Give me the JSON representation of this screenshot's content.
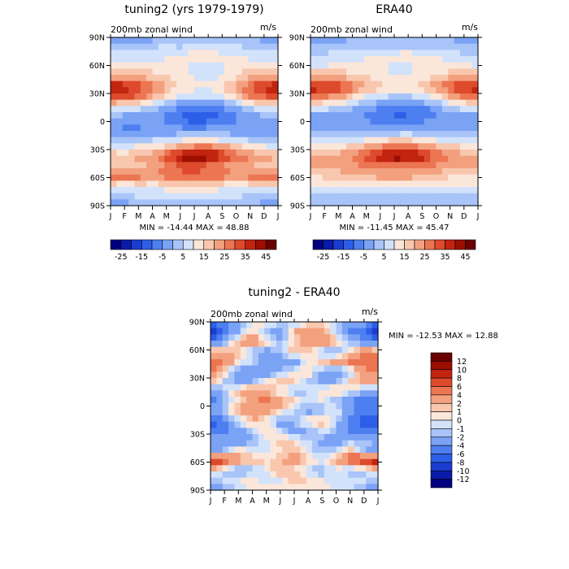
{
  "chart_data": [
    {
      "type": "heatmap",
      "title": "tuning2 (yrs 1979-1979)",
      "subtitle": "200mb zonal wind",
      "units": "m/s",
      "stats": "MIN = -14.44  MAX =  48.88",
      "x_tick_labels": [
        "J",
        "F",
        "M",
        "A",
        "M",
        "J",
        "J",
        "A",
        "S",
        "O",
        "N",
        "D",
        "J"
      ],
      "y_tick_labels": [
        "90N",
        "60N",
        "30N",
        "0",
        "30S",
        "60S",
        "90S"
      ],
      "ylim": [
        -90,
        90
      ],
      "colorbar": {
        "orientation": "horizontal",
        "levels": [
          -25,
          -20,
          -15,
          -10,
          -5,
          0,
          5,
          10,
          15,
          20,
          25,
          30,
          35,
          40,
          45
        ],
        "labels": [
          "-25",
          "-15",
          "-5",
          "5",
          "15",
          "25",
          "35",
          "45"
        ],
        "colors": [
          "#00007f",
          "#0a1aa8",
          "#1a3cd0",
          "#2d5ee8",
          "#4d7ff0",
          "#7aa2f5",
          "#a8c4f8",
          "#d2e2fb",
          "#fbe6da",
          "#f8c7ae",
          "#f3a07f",
          "#ec7552",
          "#dd4a2c",
          "#c22410",
          "#9b0e00",
          "#6b0000"
        ]
      },
      "field": {
        "lat": [
          85,
          75,
          65,
          55,
          45,
          35,
          25,
          15,
          5,
          -5,
          -15,
          -25,
          -35,
          -45,
          -55,
          -65,
          -75,
          -85
        ],
        "rows": [
          [
            -2,
            -4,
            -3,
            -2,
            -1,
            0,
            0,
            0,
            0,
            -1,
            -2,
            -2,
            -2
          ],
          [
            4,
            2,
            3,
            5,
            6,
            5,
            6,
            8,
            7,
            6,
            5,
            4,
            4
          ],
          [
            8,
            8,
            9,
            8,
            10,
            12,
            14,
            14,
            12,
            10,
            9,
            8,
            8
          ],
          [
            12,
            12,
            14,
            13,
            12,
            10,
            9,
            9,
            9,
            12,
            14,
            14,
            12
          ],
          [
            22,
            22,
            20,
            18,
            15,
            12,
            10,
            8,
            10,
            14,
            20,
            22,
            22
          ],
          [
            42,
            40,
            35,
            28,
            20,
            15,
            12,
            12,
            15,
            22,
            30,
            38,
            42
          ],
          [
            34,
            32,
            28,
            20,
            12,
            8,
            5,
            5,
            8,
            15,
            25,
            30,
            34
          ],
          [
            12,
            10,
            8,
            4,
            -2,
            -6,
            -8,
            -8,
            -5,
            0,
            6,
            10,
            12
          ],
          [
            0,
            -2,
            -3,
            -4,
            -6,
            -10,
            -14,
            -14,
            -10,
            -6,
            -3,
            -1,
            0
          ],
          [
            -4,
            -6,
            -6,
            -4,
            -4,
            -6,
            -8,
            -6,
            -4,
            -4,
            -4,
            -4,
            -4
          ],
          [
            0,
            -2,
            0,
            0,
            0,
            2,
            4,
            4,
            2,
            0,
            0,
            0,
            0
          ],
          [
            8,
            8,
            10,
            12,
            16,
            22,
            25,
            25,
            22,
            16,
            12,
            10,
            8
          ],
          [
            20,
            18,
            22,
            25,
            32,
            42,
            48,
            45,
            38,
            30,
            25,
            22,
            20
          ],
          [
            18,
            16,
            18,
            20,
            24,
            30,
            30,
            28,
            24,
            22,
            20,
            18,
            18
          ],
          [
            30,
            28,
            28,
            26,
            28,
            30,
            32,
            30,
            28,
            24,
            28,
            30,
            30
          ],
          [
            12,
            10,
            12,
            12,
            12,
            14,
            14,
            14,
            12,
            12,
            12,
            12,
            12
          ],
          [
            4,
            4,
            6,
            6,
            8,
            8,
            8,
            6,
            6,
            6,
            4,
            4,
            4
          ],
          [
            -2,
            -2,
            -1,
            0,
            0,
            0,
            0,
            0,
            0,
            -1,
            -1,
            -2,
            -2
          ]
        ]
      }
    },
    {
      "type": "heatmap",
      "title": "ERA40",
      "subtitle": "200mb zonal wind",
      "units": "m/s",
      "stats": "MIN = -11.45 MAX =  45.47",
      "x_tick_labels": [
        "J",
        "F",
        "M",
        "A",
        "M",
        "J",
        "J",
        "A",
        "S",
        "O",
        "N",
        "D",
        "J"
      ],
      "y_tick_labels": [
        "90N",
        "60N",
        "30N",
        "0",
        "30S",
        "60S",
        "90S"
      ],
      "ylim": [
        -90,
        90
      ],
      "colorbar": {
        "orientation": "horizontal",
        "levels": [
          -25,
          -20,
          -15,
          -10,
          -5,
          0,
          5,
          10,
          15,
          20,
          25,
          30,
          35,
          40,
          45
        ],
        "labels": [
          "-25",
          "-15",
          "-5",
          "5",
          "15",
          "25",
          "35",
          "45"
        ],
        "colors": [
          "#00007f",
          "#0a1aa8",
          "#1a3cd0",
          "#2d5ee8",
          "#4d7ff0",
          "#7aa2f5",
          "#a8c4f8",
          "#d2e2fb",
          "#fbe6da",
          "#f8c7ae",
          "#f3a07f",
          "#ec7552",
          "#dd4a2c",
          "#c22410",
          "#9b0e00",
          "#6b0000"
        ]
      },
      "field": {
        "lat": [
          85,
          75,
          65,
          55,
          45,
          35,
          25,
          15,
          5,
          -5,
          -15,
          -25,
          -35,
          -45,
          -55,
          -65,
          -75,
          -85
        ],
        "rows": [
          [
            -2,
            -3,
            -2,
            -1,
            0,
            0,
            0,
            0,
            0,
            0,
            -1,
            -2,
            -2
          ],
          [
            2,
            2,
            3,
            4,
            5,
            4,
            4,
            5,
            5,
            4,
            3,
            2,
            2
          ],
          [
            6,
            6,
            8,
            8,
            10,
            12,
            14,
            14,
            12,
            10,
            8,
            6,
            6
          ],
          [
            10,
            10,
            12,
            12,
            12,
            10,
            9,
            9,
            10,
            12,
            12,
            12,
            10
          ],
          [
            22,
            22,
            20,
            18,
            15,
            12,
            10,
            10,
            12,
            15,
            20,
            22,
            22
          ],
          [
            40,
            38,
            34,
            28,
            22,
            16,
            14,
            14,
            18,
            24,
            32,
            38,
            40
          ],
          [
            28,
            26,
            22,
            16,
            10,
            6,
            4,
            4,
            6,
            12,
            20,
            26,
            28
          ],
          [
            10,
            8,
            6,
            2,
            -2,
            -5,
            -8,
            -8,
            -6,
            -2,
            4,
            8,
            10
          ],
          [
            -2,
            -3,
            -3,
            -4,
            -6,
            -8,
            -11,
            -10,
            -8,
            -5,
            -3,
            -2,
            -2
          ],
          [
            -3,
            -4,
            -4,
            -3,
            -3,
            -4,
            -5,
            -4,
            -3,
            -3,
            -3,
            -3,
            -3
          ],
          [
            2,
            2,
            2,
            3,
            4,
            6,
            8,
            8,
            6,
            4,
            3,
            2,
            2
          ],
          [
            12,
            12,
            14,
            16,
            20,
            25,
            28,
            28,
            24,
            20,
            16,
            14,
            12
          ],
          [
            20,
            20,
            22,
            26,
            32,
            40,
            45,
            44,
            38,
            30,
            26,
            22,
            20
          ],
          [
            22,
            22,
            22,
            24,
            26,
            28,
            28,
            28,
            26,
            24,
            22,
            22,
            22
          ],
          [
            16,
            16,
            18,
            18,
            20,
            22,
            22,
            22,
            20,
            18,
            16,
            16,
            16
          ],
          [
            10,
            10,
            10,
            12,
            12,
            12,
            12,
            12,
            12,
            12,
            10,
            10,
            10
          ],
          [
            4,
            4,
            4,
            5,
            5,
            5,
            5,
            5,
            5,
            5,
            4,
            4,
            4
          ],
          [
            0,
            0,
            0,
            1,
            1,
            1,
            1,
            1,
            1,
            1,
            0,
            0,
            0
          ]
        ]
      }
    },
    {
      "type": "heatmap",
      "title": "tuning2 - ERA40",
      "subtitle": "200mb zonal wind",
      "units": "m/s",
      "stats": "MIN = -12.53 MAX =  12.88",
      "x_tick_labels": [
        "J",
        "F",
        "M",
        "A",
        "M",
        "J",
        "J",
        "A",
        "S",
        "O",
        "N",
        "D",
        "J"
      ],
      "y_tick_labels": [
        "90N",
        "60N",
        "30N",
        "0",
        "30S",
        "60S",
        "90S"
      ],
      "ylim": [
        -90,
        90
      ],
      "colorbar": {
        "orientation": "vertical",
        "levels": [
          -12,
          -10,
          -8,
          -6,
          -4,
          -2,
          -1,
          0,
          1,
          2,
          4,
          6,
          8,
          10,
          12
        ],
        "labels": [
          "12",
          "10",
          "8",
          "6",
          "4",
          "2",
          "1",
          "0",
          "-1",
          "-2",
          "-4",
          "-6",
          "-8",
          "-10",
          "-12"
        ],
        "colors": [
          "#00007f",
          "#0a1aa8",
          "#1a3cd0",
          "#2d5ee8",
          "#4d7ff0",
          "#7aa2f5",
          "#a8c4f8",
          "#d2e2fb",
          "#fbe6da",
          "#f8c7ae",
          "#f3a07f",
          "#ec7552",
          "#dd4a2c",
          "#c22410",
          "#9b0e00",
          "#6b0000"
        ]
      },
      "field": {
        "lat": [
          85,
          75,
          65,
          55,
          45,
          35,
          25,
          15,
          5,
          -5,
          -15,
          -25,
          -35,
          -45,
          -55,
          -65,
          -75,
          -85
        ],
        "rows": [
          [
            -6,
            -4,
            -2,
            0,
            1,
            -1,
            -2,
            0,
            1,
            -1,
            -2,
            -3,
            -6
          ],
          [
            -9,
            -6,
            -2,
            1,
            -2,
            -3,
            2,
            4,
            3,
            -1,
            -4,
            -6,
            -9
          ],
          [
            -5,
            -3,
            2,
            4,
            1,
            -2,
            1,
            3,
            4,
            2,
            -2,
            -4,
            -5
          ],
          [
            2,
            3,
            1,
            -2,
            -3,
            -1,
            2,
            1,
            -2,
            -3,
            1,
            4,
            2
          ],
          [
            6,
            4,
            1,
            -1,
            -3,
            -4,
            -3,
            0,
            2,
            3,
            5,
            6,
            6
          ],
          [
            5,
            1,
            -3,
            -5,
            -4,
            -2,
            0,
            1,
            -2,
            -4,
            -1,
            3,
            5
          ],
          [
            2,
            -1,
            -3,
            -2,
            0,
            2,
            1,
            -1,
            -3,
            -2,
            1,
            3,
            2
          ],
          [
            -3,
            -1,
            2,
            4,
            2,
            0,
            -2,
            -1,
            1,
            2,
            0,
            -2,
            -3
          ],
          [
            -5,
            -2,
            1,
            3,
            5,
            3,
            1,
            -1,
            0,
            -2,
            -4,
            -5,
            -5
          ],
          [
            -4,
            -1,
            2,
            4,
            3,
            1,
            -1,
            -3,
            -2,
            0,
            -3,
            -5,
            -4
          ],
          [
            -7,
            -4,
            -1,
            2,
            0,
            -3,
            -2,
            1,
            2,
            -1,
            -5,
            -7,
            -7
          ],
          [
            -6,
            -5,
            -3,
            -1,
            1,
            -1,
            -3,
            -2,
            0,
            -2,
            -4,
            -6,
            -6
          ],
          [
            -2,
            -3,
            -4,
            -2,
            0,
            2,
            1,
            -1,
            -3,
            -3,
            -2,
            -1,
            -2
          ],
          [
            -4,
            -2,
            1,
            0,
            -1,
            1,
            2,
            0,
            -2,
            -1,
            2,
            -2,
            -4
          ],
          [
            10,
            7,
            3,
            2,
            1,
            2,
            3,
            1,
            0,
            2,
            6,
            9,
            10
          ],
          [
            1,
            -1,
            -3,
            -2,
            0,
            2,
            1,
            -1,
            -2,
            0,
            -2,
            -1,
            1
          ],
          [
            -2,
            -1,
            0,
            1,
            -1,
            0,
            2,
            1,
            0,
            -1,
            0,
            -1,
            -2
          ],
          [
            -3,
            -2,
            -1,
            0,
            1,
            1,
            0,
            0,
            1,
            0,
            -1,
            -2,
            -3
          ]
        ]
      }
    }
  ]
}
